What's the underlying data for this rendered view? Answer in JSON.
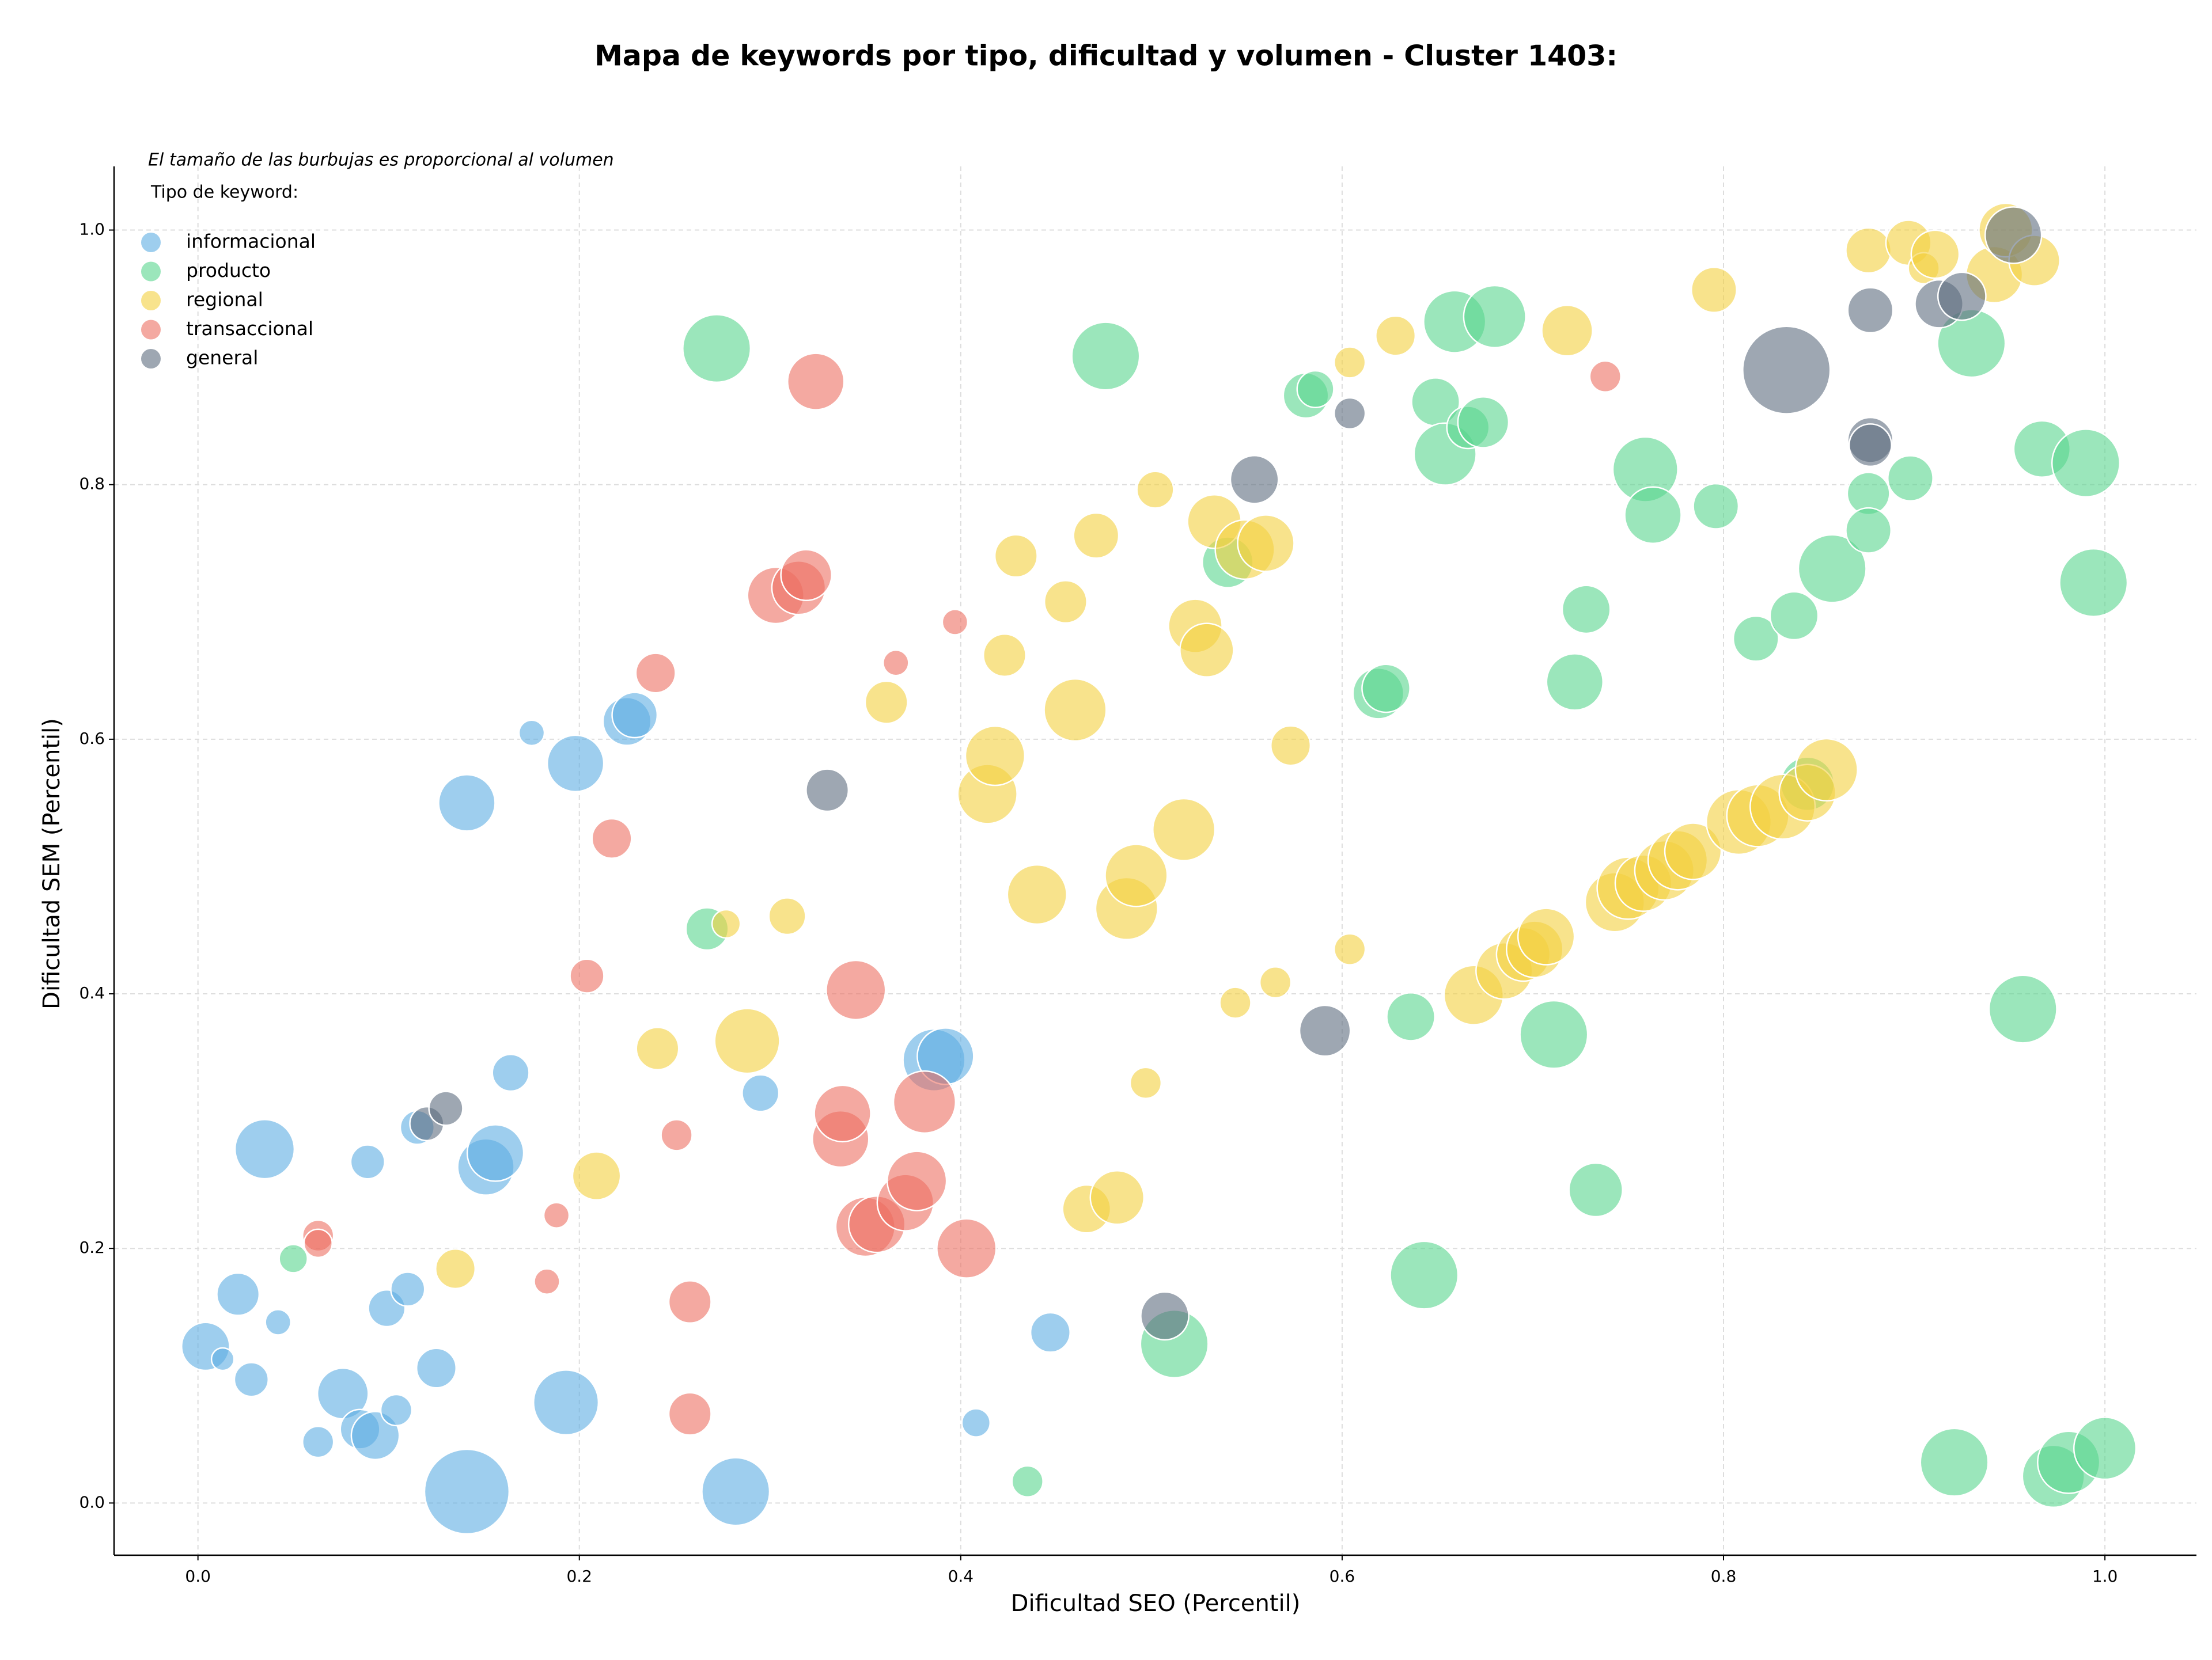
{
  "chart_data": {
    "type": "scatter",
    "title": "Mapa de keywords por tipo, dificultad y volumen - Cluster 1403:",
    "annotation": "El tamaño de las burbujas es proporcional al volumen",
    "legend_title": "Tipo de keyword:",
    "xlabel": "Dificultad SEO (Percentil)",
    "ylabel": "Dificultad SEM (Percentil)",
    "xlim": [
      -0.044,
      1.048
    ],
    "ylim": [
      -0.041,
      1.05
    ],
    "xticks": [
      {
        "value": 0,
        "label": "0.0"
      },
      0.2,
      0.4,
      0.6,
      0.8,
      {
        "value": 1,
        "label": "1.0"
      }
    ],
    "yticks": [
      {
        "value": 0,
        "label": "0.0"
      },
      0.2,
      0.4,
      0.6,
      0.8,
      {
        "value": 1,
        "label": "1.0"
      }
    ],
    "grid": true,
    "legend_position": "upper left",
    "series": [
      {
        "name": "informacional",
        "color": "#5dade2",
        "x": [
          0.004,
          0.013,
          0.021,
          0.028,
          0.042,
          0.035,
          0.063,
          0.076,
          0.085,
          0.093,
          0.089,
          0.099,
          0.104,
          0.11,
          0.115,
          0.125,
          0.141,
          0.141,
          0.151,
          0.156,
          0.164,
          0.175,
          0.193,
          0.198,
          0.225,
          0.229,
          0.282,
          0.295,
          0.386,
          0.392,
          0.408,
          0.447
        ],
        "values": [
          0.123,
          0.113,
          0.164,
          0.097,
          0.142,
          0.278,
          0.048,
          0.086,
          0.058,
          0.053,
          0.268,
          0.153,
          0.073,
          0.168,
          0.295,
          0.106,
          0.009,
          0.55,
          0.264,
          0.275,
          0.338,
          0.605,
          0.079,
          0.581,
          0.614,
          0.619,
          0.009,
          0.322,
          0.348,
          0.351,
          0.063,
          0.134
        ],
        "sizes": [
          289,
          64,
          225,
          144,
          81,
          441,
          121,
          324,
          196,
          289,
          144,
          169,
          121,
          144,
          144,
          196,
          900,
          400,
          400,
          400,
          169,
          81,
          529,
          400,
          289,
          256,
          576,
          169,
          484,
          400,
          100,
          196
        ]
      },
      {
        "name": "producto",
        "color": "#58d68d",
        "x": [
          0.05,
          0.267,
          0.272,
          0.435,
          0.476,
          0.512,
          0.54,
          0.581,
          0.586,
          0.619,
          0.623,
          0.636,
          0.643,
          0.649,
          0.654,
          0.659,
          0.666,
          0.674,
          0.68,
          0.711,
          0.722,
          0.728,
          0.733,
          0.759,
          0.763,
          0.796,
          0.817,
          0.837,
          0.844,
          0.857,
          0.876,
          0.876,
          0.898,
          0.921,
          0.93,
          0.957,
          0.967,
          0.973,
          0.981,
          0.99,
          0.994,
          1.0
        ],
        "values": [
          0.192,
          0.451,
          0.907,
          0.017,
          0.901,
          0.125,
          0.739,
          0.87,
          0.875,
          0.636,
          0.64,
          0.382,
          0.179,
          0.865,
          0.824,
          0.928,
          0.845,
          0.849,
          0.932,
          0.368,
          0.645,
          0.702,
          0.246,
          0.812,
          0.776,
          0.783,
          0.679,
          0.697,
          0.565,
          0.734,
          0.793,
          0.764,
          0.805,
          0.032,
          0.911,
          0.388,
          0.828,
          0.021,
          0.032,
          0.817,
          0.723,
          0.043
        ],
        "sizes": [
          100,
          225,
          576,
          121,
          576,
          576,
          324,
          256,
          169,
          324,
          289,
          289,
          576,
          289,
          484,
          484,
          225,
          324,
          484,
          576,
          400,
          289,
          361,
          529,
          400,
          256,
          256,
          289,
          361,
          576,
          225,
          256,
          256,
          576,
          576,
          576,
          400,
          484,
          484,
          576,
          576,
          484
        ]
      },
      {
        "name": "regional",
        "color": "#f4d03f",
        "x": [
          0.135,
          0.209,
          0.241,
          0.277,
          0.288,
          0.309,
          0.361,
          0.414,
          0.418,
          0.423,
          0.429,
          0.44,
          0.455,
          0.46,
          0.466,
          0.471,
          0.482,
          0.487,
          0.492,
          0.497,
          0.502,
          0.517,
          0.523,
          0.529,
          0.533,
          0.544,
          0.549,
          0.56,
          0.565,
          0.573,
          0.604,
          0.604,
          0.628,
          0.669,
          0.685,
          0.695,
          0.701,
          0.707,
          0.718,
          0.743,
          0.75,
          0.758,
          0.769,
          0.776,
          0.784,
          0.795,
          0.808,
          0.818,
          0.831,
          0.844,
          0.854,
          0.876,
          0.897,
          0.905,
          0.911,
          0.942,
          0.948,
          0.963
        ],
        "values": [
          0.184,
          0.257,
          0.357,
          0.455,
          0.363,
          0.461,
          0.629,
          0.557,
          0.587,
          0.666,
          0.744,
          0.478,
          0.708,
          0.623,
          0.231,
          0.76,
          0.24,
          0.467,
          0.493,
          0.33,
          0.796,
          0.529,
          0.689,
          0.67,
          0.771,
          0.393,
          0.749,
          0.754,
          0.409,
          0.595,
          0.896,
          0.435,
          0.917,
          0.399,
          0.418,
          0.431,
          0.435,
          0.445,
          0.921,
          0.472,
          0.483,
          0.487,
          0.497,
          0.505,
          0.512,
          0.953,
          0.535,
          0.54,
          0.547,
          0.558,
          0.576,
          0.984,
          0.99,
          0.97,
          0.981,
          0.965,
          1.0,
          0.976
        ],
        "sizes": [
          196,
          289,
          225,
          100,
          529,
          169,
          225,
          441,
          441,
          225,
          225,
          441,
          225,
          484,
          289,
          256,
          361,
          484,
          484,
          121,
          169,
          484,
          361,
          361,
          361,
          121,
          441,
          400,
          121,
          196,
          121,
          121,
          196,
          441,
          400,
          361,
          400,
          400,
          324,
          441,
          484,
          400,
          441,
          441,
          400,
          256,
          529,
          484,
          529,
          400,
          484,
          256,
          256,
          121,
          289,
          400,
          361,
          324
        ]
      },
      {
        "name": "transaccional",
        "color": "#ec7063",
        "x": [
          0.063,
          0.063,
          0.183,
          0.188,
          0.204,
          0.217,
          0.24,
          0.251,
          0.258,
          0.258,
          0.303,
          0.315,
          0.319,
          0.324,
          0.337,
          0.338,
          0.345,
          0.35,
          0.356,
          0.366,
          0.371,
          0.377,
          0.381,
          0.397,
          0.403,
          0.738
        ],
        "values": [
          0.21,
          0.204,
          0.174,
          0.226,
          0.414,
          0.522,
          0.652,
          0.289,
          0.158,
          0.07,
          0.713,
          0.719,
          0.729,
          0.881,
          0.286,
          0.306,
          0.403,
          0.217,
          0.219,
          0.66,
          0.236,
          0.253,
          0.315,
          0.692,
          0.2,
          0.885
        ],
        "sizes": [
          121,
          100,
          81,
          81,
          144,
          196,
          196,
          121,
          225,
          225,
          400,
          361,
          324,
          400,
          400,
          400,
          441,
          441,
          400,
          81,
          400,
          441,
          484,
          81,
          441,
          121
        ]
      },
      {
        "name": "general",
        "color": "#5d6d7e",
        "x": [
          0.12,
          0.13,
          0.33,
          0.507,
          0.554,
          0.591,
          0.604,
          0.833,
          0.877,
          0.877,
          0.877,
          0.913,
          0.925,
          0.952
        ],
        "values": [
          0.298,
          0.31,
          0.56,
          0.147,
          0.804,
          0.371,
          0.856,
          0.89,
          0.937,
          0.835,
          0.831,
          0.942,
          0.948,
          0.996
        ],
        "sizes": [
          144,
          144,
          225,
          289,
          289,
          324,
          121,
          961,
          256,
          256,
          225,
          289,
          289,
          400
        ]
      }
    ]
  }
}
